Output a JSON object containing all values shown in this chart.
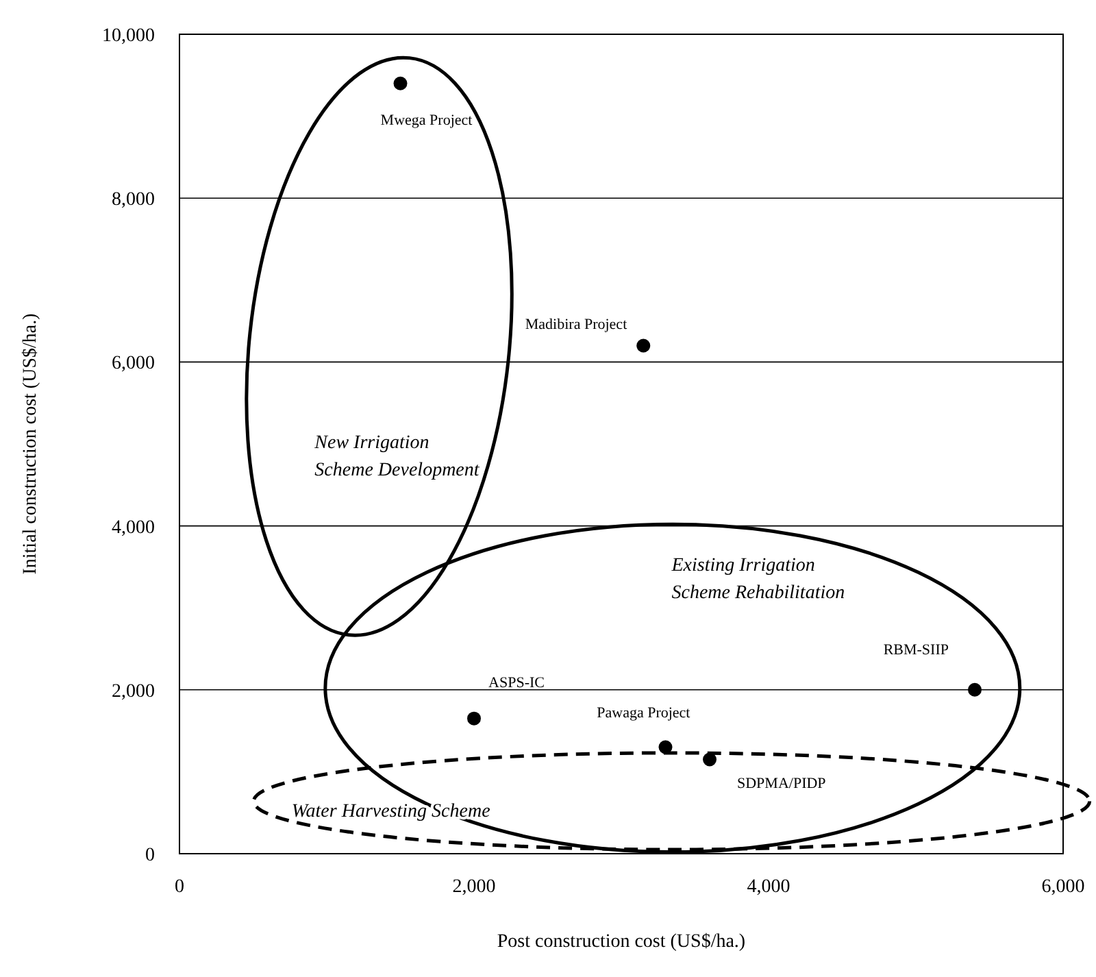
{
  "chart_data": {
    "type": "scatter",
    "xlabel": "Post construction cost (US$/ha.)",
    "ylabel": "Initial construction cost (US$/ha.)",
    "x": [
      1500,
      3150,
      2000,
      3300,
      3600,
      5400
    ],
    "series": [
      {
        "color": "#000000",
        "values": [
          9400,
          6200,
          1650,
          1300,
          1150,
          2000
        ]
      }
    ],
    "marker": "circle",
    "grid": "y",
    "legend": false,
    "xlim": [
      0,
      6000
    ],
    "xticks": [
      0,
      {
        "value": 2000,
        "label": "2,000"
      },
      {
        "value": 4000,
        "label": "4,000"
      },
      {
        "value": 6000,
        "label": "6,000"
      }
    ],
    "ylim": [
      0,
      10000
    ],
    "yticks": [
      0,
      {
        "value": 2000,
        "label": "2,000"
      },
      {
        "value": 4000,
        "label": "4,000"
      },
      {
        "value": 6000,
        "label": "6,000"
      },
      {
        "value": 8000,
        "label": "8,000"
      },
      {
        "value": 10000,
        "label": "10,000"
      }
    ],
    "annotations": [
      {
        "text": "Mwega Project",
        "x": 1500,
        "y": 9400
      },
      {
        "text": "Madibira Project",
        "x": 3150,
        "y": 6200
      },
      {
        "text": "ASPS-IC",
        "x": 2000,
        "y": 1650
      },
      {
        "text": "Pawaga Project",
        "x": 3300,
        "y": 1300
      },
      {
        "text": "SDPMA/PIDP",
        "x": 3600,
        "y": 1150
      },
      {
        "text": "RBM-SIIP",
        "x": 5400,
        "y": 2000
      },
      "New Irrigation Scheme Development",
      "Existing Irrigation Scheme Rehabilitation",
      "Water Harvesting Scheme"
    ]
  }
}
